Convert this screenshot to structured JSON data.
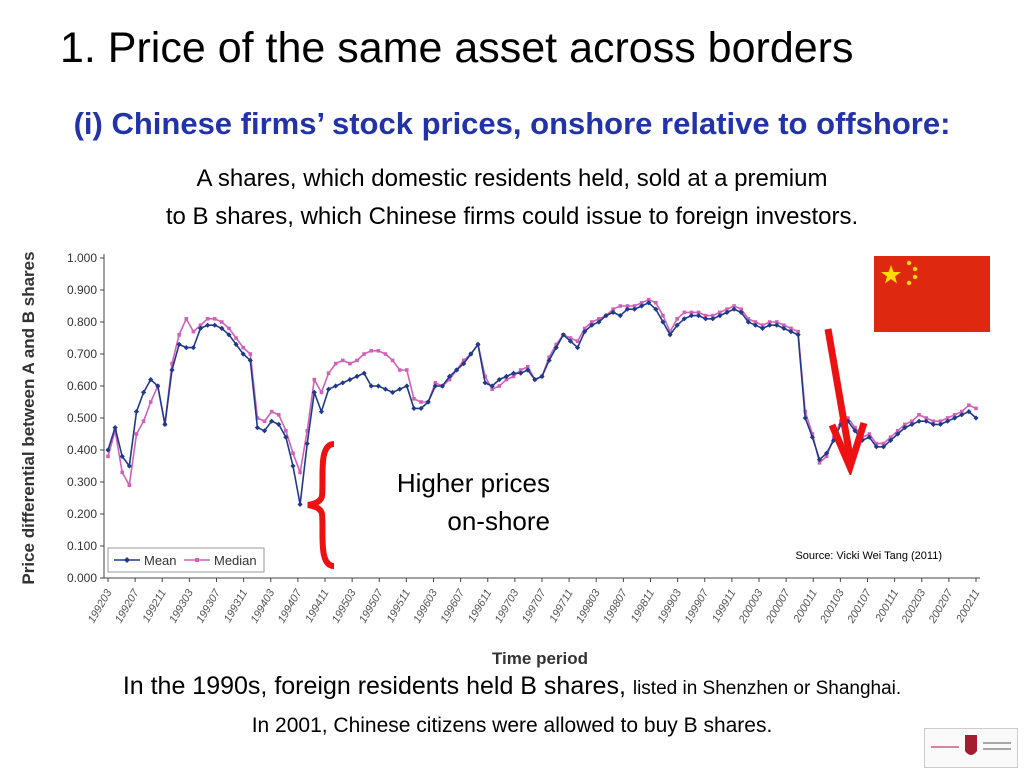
{
  "slide": {
    "title": "1. Price of the same asset across borders",
    "subtitle": "(i) Chinese firms’ stock prices, onshore relative to offshore:",
    "desc_line1": "A shares, which domestic residents held, sold at a premium",
    "desc_line2": "to B shares, which Chinese firms could issue to foreign investors.",
    "annotation_higher_line1": "Higher prices",
    "annotation_higher_line2": "on-shore",
    "source": "Source: Vicki Wei Tang  (2011)",
    "footer_line1_main": "In the 1990s, foreign residents held B shares,",
    "footer_line1_small": "listed in Shenzhen or Shanghai.",
    "footer_line2": "In 2001, Chinese citizens were allowed to buy B shares.",
    "colors": {
      "subtitle": "#2233aa",
      "mean": "#1f3a8a",
      "median": "#d060b8",
      "arrow": "#ee1111",
      "flag_red": "#de2910",
      "flag_star": "#ffde00"
    }
  },
  "chart_data": {
    "type": "line",
    "ylabel": "Price differential between A and B shares",
    "xlabel": "Time period",
    "ylim": [
      0,
      1
    ],
    "y_ticks": [
      "0.000",
      "0.100",
      "0.200",
      "0.300",
      "0.400",
      "0.500",
      "0.600",
      "0.700",
      "0.800",
      "0.900",
      "1.000"
    ],
    "x_tick_labels": [
      "199203",
      "199207",
      "199211",
      "199303",
      "199307",
      "199311",
      "199403",
      "199407",
      "199411",
      "199503",
      "199507",
      "199511",
      "199603",
      "199607",
      "199611",
      "199703",
      "199707",
      "199711",
      "199803",
      "199807",
      "199811",
      "199903",
      "199907",
      "199911",
      "200003",
      "200007",
      "200011",
      "200103",
      "200107",
      "200111",
      "200203",
      "200207",
      "200211"
    ],
    "legend": "bottom-left",
    "series": [
      {
        "name": "Mean",
        "values": [
          0.4,
          0.47,
          0.38,
          0.35,
          0.52,
          0.58,
          0.62,
          0.6,
          0.48,
          0.65,
          0.73,
          0.72,
          0.72,
          0.78,
          0.79,
          0.79,
          0.78,
          0.76,
          0.73,
          0.7,
          0.68,
          0.47,
          0.46,
          0.49,
          0.48,
          0.44,
          0.35,
          0.23,
          0.42,
          0.58,
          0.52,
          0.59,
          0.6,
          0.61,
          0.62,
          0.63,
          0.64,
          0.6,
          0.6,
          0.59,
          0.58,
          0.59,
          0.6,
          0.53,
          0.53,
          0.55,
          0.6,
          0.6,
          0.63,
          0.65,
          0.67,
          0.7,
          0.73,
          0.61,
          0.6,
          0.62,
          0.63,
          0.64,
          0.64,
          0.65,
          0.62,
          0.63,
          0.68,
          0.72,
          0.76,
          0.74,
          0.72,
          0.77,
          0.79,
          0.8,
          0.82,
          0.83,
          0.82,
          0.84,
          0.84,
          0.85,
          0.86,
          0.84,
          0.8,
          0.76,
          0.79,
          0.81,
          0.82,
          0.82,
          0.81,
          0.81,
          0.82,
          0.83,
          0.84,
          0.83,
          0.8,
          0.79,
          0.78,
          0.79,
          0.79,
          0.78,
          0.77,
          0.76,
          0.5,
          0.44,
          0.37,
          0.39,
          0.43,
          0.48,
          0.49,
          0.46,
          0.43,
          0.44,
          0.41,
          0.41,
          0.43,
          0.45,
          0.47,
          0.48,
          0.49,
          0.49,
          0.48,
          0.48,
          0.49,
          0.5,
          0.51,
          0.52,
          0.5
        ]
      },
      {
        "name": "Median",
        "values": [
          0.38,
          0.46,
          0.33,
          0.29,
          0.45,
          0.49,
          0.55,
          0.6,
          0.48,
          0.67,
          0.76,
          0.81,
          0.77,
          0.79,
          0.81,
          0.81,
          0.8,
          0.78,
          0.75,
          0.72,
          0.7,
          0.5,
          0.49,
          0.52,
          0.51,
          0.46,
          0.39,
          0.33,
          0.46,
          0.62,
          0.58,
          0.64,
          0.67,
          0.68,
          0.67,
          0.68,
          0.7,
          0.71,
          0.71,
          0.7,
          0.68,
          0.65,
          0.65,
          0.56,
          0.55,
          0.55,
          0.61,
          0.6,
          0.62,
          0.65,
          0.68,
          0.7,
          0.73,
          0.63,
          0.59,
          0.6,
          0.62,
          0.63,
          0.65,
          0.66,
          0.62,
          0.63,
          0.69,
          0.73,
          0.76,
          0.75,
          0.74,
          0.78,
          0.8,
          0.81,
          0.82,
          0.84,
          0.85,
          0.85,
          0.85,
          0.86,
          0.87,
          0.86,
          0.82,
          0.77,
          0.81,
          0.83,
          0.83,
          0.83,
          0.82,
          0.82,
          0.83,
          0.84,
          0.85,
          0.84,
          0.81,
          0.8,
          0.79,
          0.8,
          0.8,
          0.79,
          0.78,
          0.77,
          0.52,
          0.45,
          0.36,
          0.38,
          0.44,
          0.49,
          0.5,
          0.47,
          0.44,
          0.45,
          0.42,
          0.42,
          0.44,
          0.46,
          0.48,
          0.49,
          0.51,
          0.5,
          0.49,
          0.49,
          0.5,
          0.51,
          0.52,
          0.54,
          0.53
        ]
      }
    ]
  }
}
